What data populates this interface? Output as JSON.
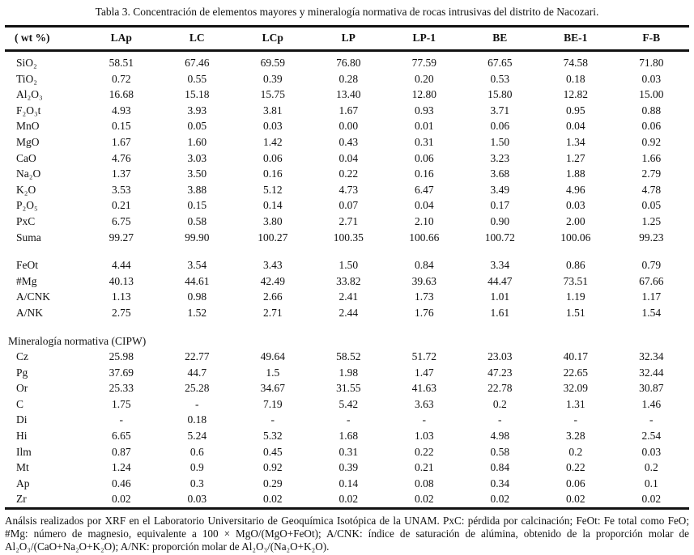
{
  "title": "Tabla 3. Concentración de elementos mayores y mineralogía normativa de rocas intrusivas del distrito de Nacozari.",
  "table": {
    "columns": [
      "( wt %)",
      "LAp",
      "LC",
      "LCp",
      "LP",
      "LP-1",
      "BE",
      "BE-1",
      "F-B"
    ],
    "rows": [
      {
        "type": "data",
        "label": "SiO₂",
        "values": [
          "58.51",
          "67.46",
          "69.59",
          "76.80",
          "77.59",
          "67.65",
          "74.58",
          "71.80"
        ]
      },
      {
        "type": "data",
        "label": "TiO₂",
        "values": [
          "0.72",
          "0.55",
          "0.39",
          "0.28",
          "0.20",
          "0.53",
          "0.18",
          "0.03"
        ]
      },
      {
        "type": "data",
        "label": "Al₂O₃",
        "values": [
          "16.68",
          "15.18",
          "15.75",
          "13.40",
          "12.80",
          "15.80",
          "12.82",
          "15.00"
        ]
      },
      {
        "type": "data",
        "label": "F₂O₃t",
        "values": [
          "4.93",
          "3.93",
          "3.81",
          "1.67",
          "0.93",
          "3.71",
          "0.95",
          "0.88"
        ]
      },
      {
        "type": "data",
        "label": "MnO",
        "values": [
          "0.15",
          "0.05",
          "0.03",
          "0.00",
          "0.01",
          "0.06",
          "0.04",
          "0.06"
        ]
      },
      {
        "type": "data",
        "label": "MgO",
        "values": [
          "1.67",
          "1.60",
          "1.42",
          "0.43",
          "0.31",
          "1.50",
          "1.34",
          "0.92"
        ]
      },
      {
        "type": "data",
        "label": "CaO",
        "values": [
          "4.76",
          "3.03",
          "0.06",
          "0.04",
          "0.06",
          "3.23",
          "1.27",
          "1.66"
        ]
      },
      {
        "type": "data",
        "label": "Na₂O",
        "values": [
          "1.37",
          "3.50",
          "0.16",
          "0.22",
          "0.16",
          "3.68",
          "1.88",
          "2.79"
        ]
      },
      {
        "type": "data",
        "label": "K₂O",
        "values": [
          "3.53",
          "3.88",
          "5.12",
          "4.73",
          "6.47",
          "3.49",
          "4.96",
          "4.78"
        ]
      },
      {
        "type": "data",
        "label": "P₂O₅",
        "values": [
          "0.21",
          "0.15",
          "0.14",
          "0.07",
          "0.04",
          "0.17",
          "0.03",
          "0.05"
        ]
      },
      {
        "type": "data",
        "label": "PxC",
        "values": [
          "6.75",
          "0.58",
          "3.80",
          "2.71",
          "2.10",
          "0.90",
          "2.00",
          "1.25"
        ]
      },
      {
        "type": "data",
        "label": "Suma",
        "values": [
          "99.27",
          "99.90",
          "100.27",
          "100.35",
          "100.66",
          "100.72",
          "100.06",
          "99.23"
        ]
      },
      {
        "type": "spacer"
      },
      {
        "type": "data",
        "label": "FeOt",
        "values": [
          "4.44",
          "3.54",
          "3.43",
          "1.50",
          "0.84",
          "3.34",
          "0.86",
          "0.79"
        ]
      },
      {
        "type": "data",
        "label": "#Mg",
        "values": [
          "40.13",
          "44.61",
          "42.49",
          "33.82",
          "39.63",
          "44.47",
          "73.51",
          "67.66"
        ]
      },
      {
        "type": "data",
        "label": "A/CNK",
        "values": [
          "1.13",
          "0.98",
          "2.66",
          "2.41",
          "1.73",
          "1.01",
          "1.19",
          "1.17"
        ]
      },
      {
        "type": "data",
        "label": "A/NK",
        "values": [
          "2.75",
          "1.52",
          "2.71",
          "2.44",
          "1.76",
          "1.61",
          "1.51",
          "1.54"
        ]
      },
      {
        "type": "spacer"
      },
      {
        "type": "section",
        "label": "Mineralogía normativa (CIPW)"
      },
      {
        "type": "data",
        "label": "Cz",
        "values": [
          "25.98",
          "22.77",
          "49.64",
          "58.52",
          "51.72",
          "23.03",
          "40.17",
          "32.34"
        ]
      },
      {
        "type": "data",
        "label": "Pg",
        "values": [
          "37.69",
          "44.7",
          "1.5",
          "1.98",
          "1.47",
          "47.23",
          "22.65",
          "32.44"
        ]
      },
      {
        "type": "data",
        "label": "Or",
        "values": [
          "25.33",
          "25.28",
          "34.67",
          "31.55",
          "41.63",
          "22.78",
          "32.09",
          "30.87"
        ]
      },
      {
        "type": "data",
        "label": "C",
        "values": [
          "1.75",
          "-",
          "7.19",
          "5.42",
          "3.63",
          "0.2",
          "1.31",
          "1.46"
        ]
      },
      {
        "type": "data",
        "label": "Di",
        "values": [
          "-",
          "0.18",
          "-",
          "-",
          "-",
          "-",
          "-",
          "-"
        ]
      },
      {
        "type": "data",
        "label": "Hi",
        "values": [
          "6.65",
          "5.24",
          "5.32",
          "1.68",
          "1.03",
          "4.98",
          "3.28",
          "2.54"
        ]
      },
      {
        "type": "data",
        "label": "Ilm",
        "values": [
          "0.87",
          "0.6",
          "0.45",
          "0.31",
          "0.22",
          "0.58",
          "0.2",
          "0.03"
        ]
      },
      {
        "type": "data",
        "label": "Mt",
        "values": [
          "1.24",
          "0.9",
          "0.92",
          "0.39",
          "0.21",
          "0.84",
          "0.22",
          "0.2"
        ]
      },
      {
        "type": "data",
        "label": "Ap",
        "values": [
          "0.46",
          "0.3",
          "0.29",
          "0.14",
          "0.08",
          "0.34",
          "0.06",
          "0.1"
        ]
      },
      {
        "type": "data",
        "label": "Zr",
        "values": [
          "0.02",
          "0.03",
          "0.02",
          "0.02",
          "0.02",
          "0.02",
          "0.02",
          "0.02"
        ]
      }
    ]
  },
  "footnote": "Análsis realizados por XRF en el Laboratorio Universitario de Geoquímica Isotópica de la UNAM. PxC: pérdida por calcinación; FeOt: Fe total como FeO; #Mg: número de magnesio, equivalente a 100 × MgO/(MgO+FeOt); A/CNK: índice de saturación de alúmina, obtenido de la proporción molar de Al₂O₃/(CaO+Na₂O+K₂O); A/NK: proporción molar de Al₂O₃/(Na₂O+K₂O)."
}
